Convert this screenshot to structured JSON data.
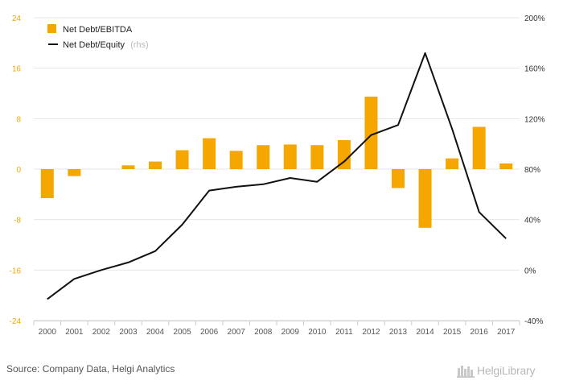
{
  "chart_data": {
    "type": "bar+line",
    "categories": [
      "2000",
      "2001",
      "2002",
      "2003",
      "2004",
      "2005",
      "2006",
      "2007",
      "2008",
      "2009",
      "2010",
      "2011",
      "2012",
      "2013",
      "2014",
      "2015",
      "2016",
      "2017"
    ],
    "series": [
      {
        "name": "Net Debt/EBITDA",
        "type": "bar",
        "axis": "left",
        "color": "#f5a700",
        "values": [
          -4.6,
          -1.1,
          null,
          0.6,
          1.2,
          3.0,
          4.9,
          2.9,
          3.8,
          3.9,
          3.8,
          4.6,
          11.5,
          -3.0,
          -9.3,
          1.7,
          6.7,
          0.9
        ]
      },
      {
        "name": "Net Debt/Equity",
        "name_suffix": "(rhs)",
        "type": "line",
        "axis": "right",
        "color": "#111111",
        "values": [
          -23,
          -7,
          0,
          6,
          15,
          36,
          63,
          66,
          68,
          73,
          70,
          86,
          107,
          115,
          172,
          112,
          46,
          25
        ]
      }
    ],
    "y_left": {
      "min": -24,
      "max": 24,
      "ticks": [
        "24",
        "16",
        "8",
        "0",
        "-8",
        "-16",
        "-24"
      ],
      "tick_values": [
        24,
        16,
        8,
        0,
        -8,
        -16,
        -24
      ]
    },
    "y_right": {
      "min": -40,
      "max": 200,
      "ticks": [
        "200%",
        "160%",
        "120%",
        "80%",
        "40%",
        "0%",
        "-40%"
      ],
      "tick_values": [
        200,
        160,
        120,
        80,
        40,
        0,
        -40
      ]
    },
    "grid": true,
    "legend_position": "top-left"
  },
  "source_text": "Source: Company Data, Helgi Analytics",
  "logo_text": "HelgiLibrary"
}
